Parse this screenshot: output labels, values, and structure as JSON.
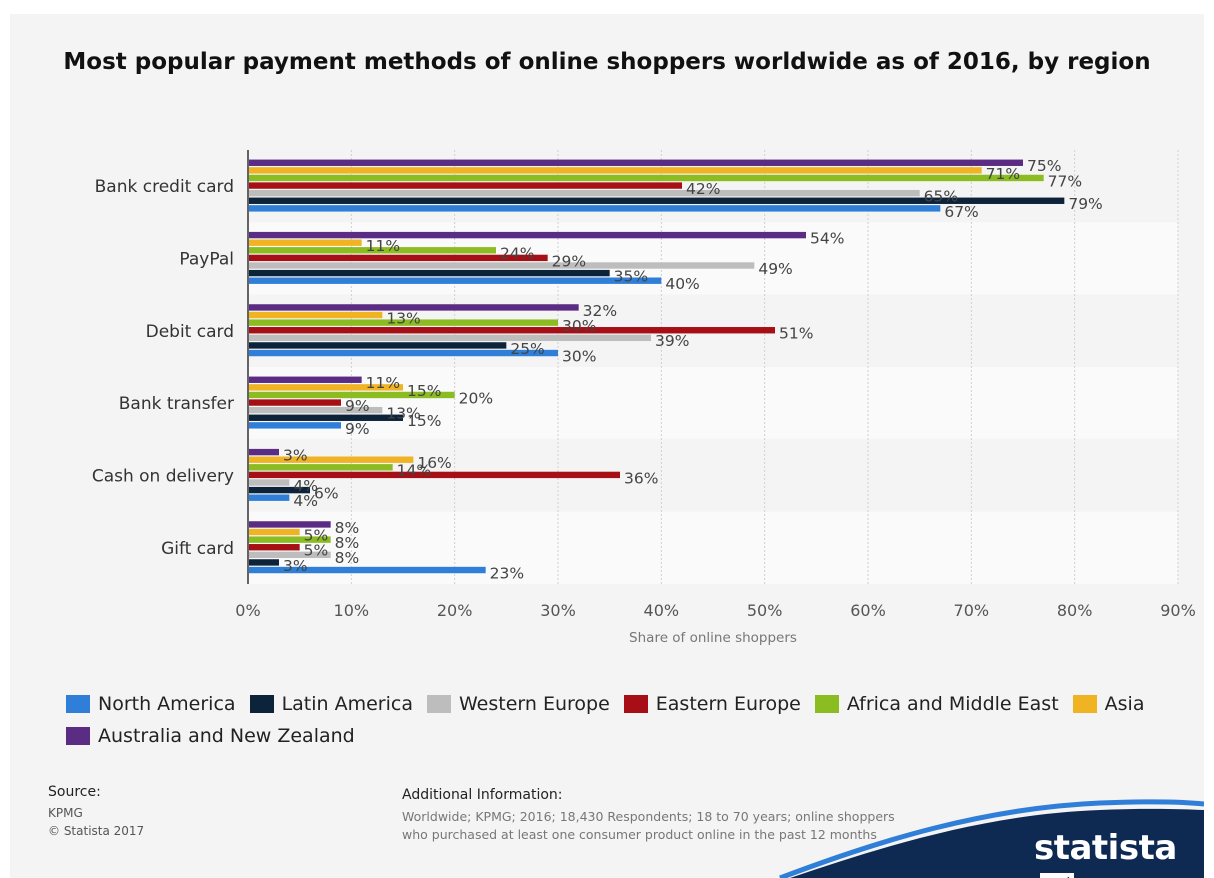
{
  "chart_data": {
    "type": "bar",
    "orientation": "horizontal",
    "title": "Most popular payment methods of online shoppers worldwide as of 2016, by region",
    "xlabel": "Share of online shoppers",
    "ylabel": "",
    "xlim": [
      0,
      90
    ],
    "x_ticks": [
      "0%",
      "10%",
      "20%",
      "30%",
      "40%",
      "50%",
      "60%",
      "70%",
      "80%",
      "90%"
    ],
    "grid": true,
    "legend_position": "bottom",
    "categories": [
      "Bank credit card",
      "PayPal",
      "Debit card",
      "Bank transfer",
      "Cash on delivery",
      "Gift card"
    ],
    "series": [
      {
        "name": "North America",
        "color": "#2f7ed8",
        "values": [
          67,
          40,
          30,
          9,
          4,
          23
        ]
      },
      {
        "name": "Latin America",
        "color": "#0d233a",
        "values": [
          79,
          35,
          25,
          15,
          6,
          3
        ]
      },
      {
        "name": "Western Europe",
        "color": "#bdbdbd",
        "values": [
          65,
          49,
          39,
          13,
          4,
          8
        ]
      },
      {
        "name": "Eastern Europe",
        "color": "#a50f15",
        "values": [
          42,
          29,
          51,
          9,
          36,
          5
        ]
      },
      {
        "name": "Africa and Middle East",
        "color": "#8bbc21",
        "values": [
          77,
          24,
          30,
          20,
          14,
          8
        ]
      },
      {
        "name": "Asia",
        "color": "#f0b323",
        "values": [
          71,
          11,
          13,
          15,
          16,
          5
        ]
      },
      {
        "name": "Australia and New Zealand",
        "color": "#5b2c83",
        "values": [
          75,
          54,
          32,
          11,
          3,
          8
        ]
      }
    ],
    "value_suffix": "%"
  },
  "source": {
    "label": "Source:",
    "lines": [
      "KPMG",
      "© Statista 2017"
    ]
  },
  "additional_info": {
    "label": "Additional Information:",
    "text": "Worldwide; KPMG; 2016; 18,430 Respondents; 18 to 70 years; online shoppers who purchased at least one consumer product online in the past 12 months"
  },
  "brand": {
    "name": "statista",
    "color": "#0f2a52"
  }
}
